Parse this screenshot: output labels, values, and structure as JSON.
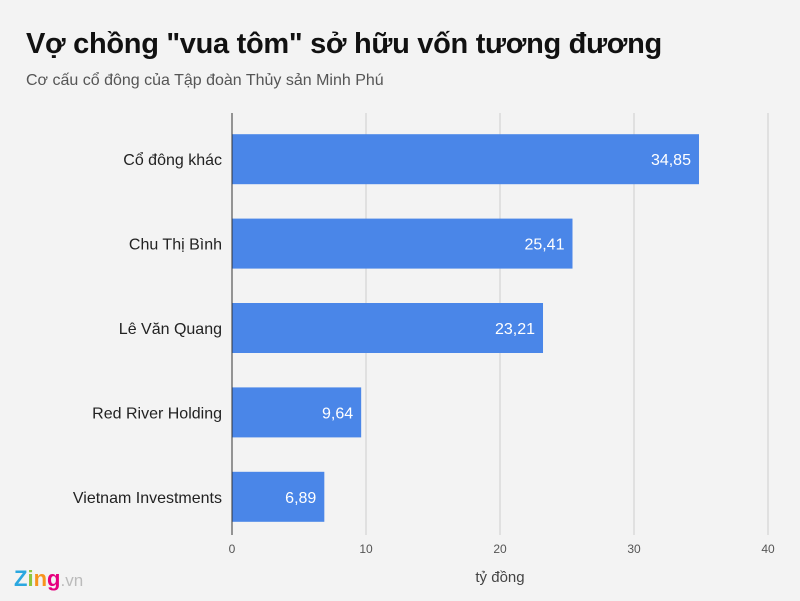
{
  "chart_data": {
    "type": "bar",
    "orientation": "horizontal",
    "title": "Vợ chồng \"vua tôm\" sở hữu vốn tương đương",
    "subtitle": "Cơ cấu cổ đông của Tập đoàn Thủy sản Minh Phú",
    "categories": [
      "Cổ đông khác",
      "Chu Thị Bình",
      "Lê Văn Quang",
      "Red River Holding",
      "Vietnam Investments"
    ],
    "values": [
      34.85,
      25.41,
      23.21,
      9.64,
      6.89
    ],
    "data_labels": [
      "34,85",
      "25,41",
      "23,21",
      "9,64",
      "6,89"
    ],
    "xlabel": "tỷ đồng",
    "ylabel": "",
    "xlim": [
      0,
      40
    ],
    "ticks": [
      0,
      10,
      20,
      30,
      40
    ],
    "grid": true,
    "bar_color": "#4a86e8"
  },
  "logo": {
    "z": "Z",
    "i": "i",
    "n": "n",
    "g": "g",
    "vn": ".vn"
  }
}
